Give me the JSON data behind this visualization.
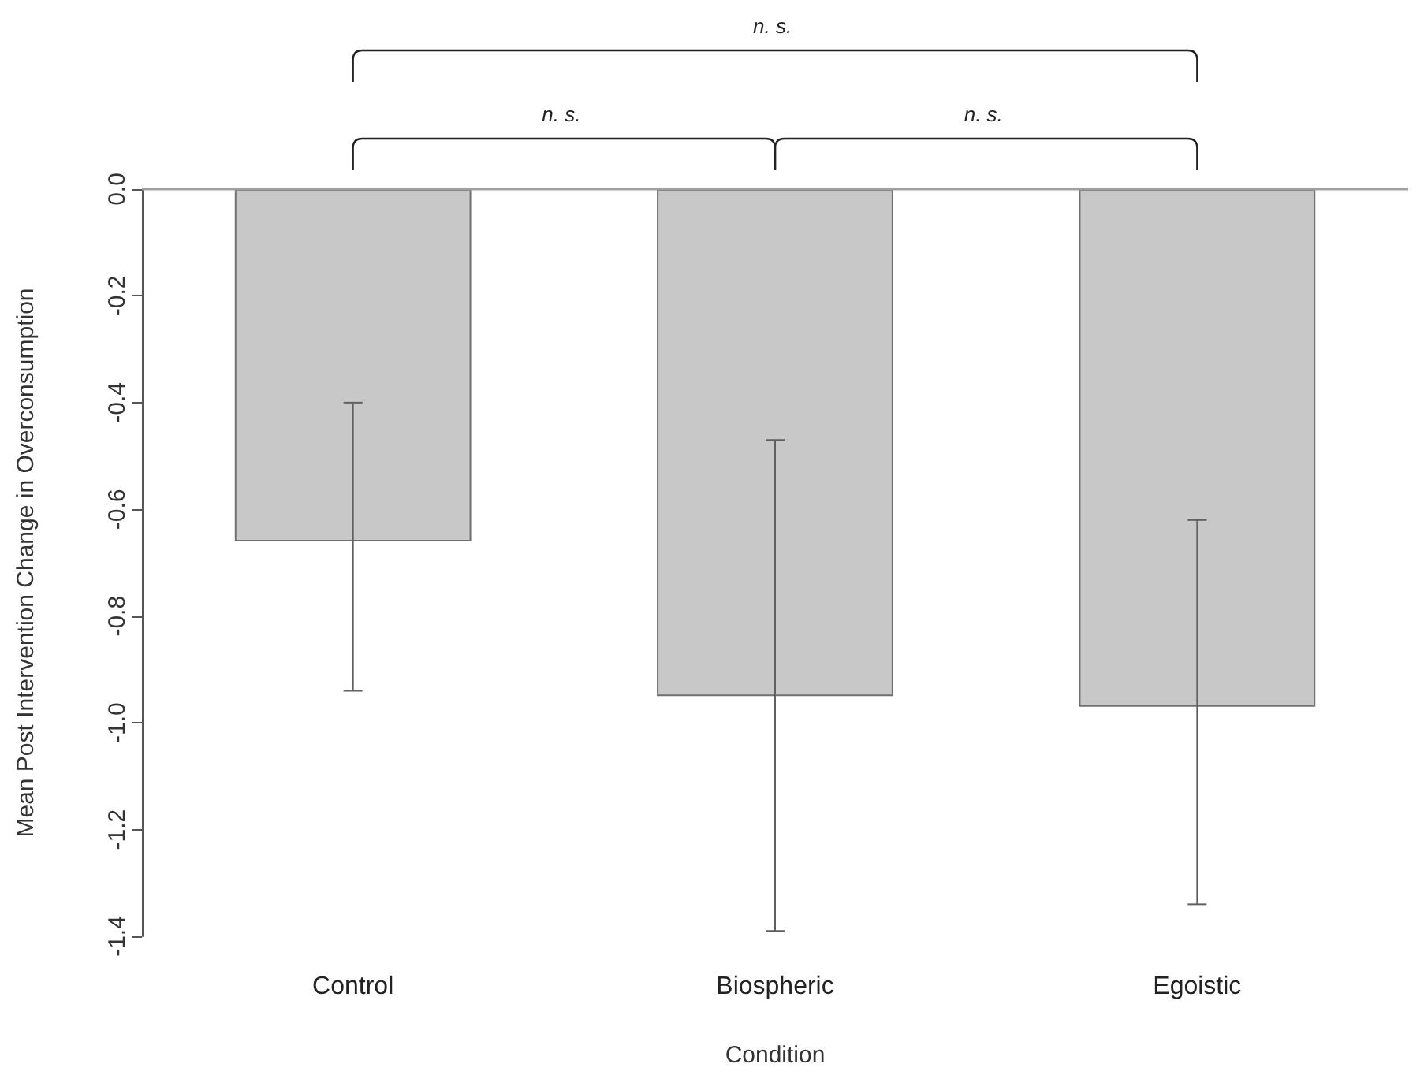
{
  "chart_data": {
    "type": "bar",
    "xlabel": "Condition",
    "ylabel": "Mean Post Intervention Change in Overconsumption",
    "categories": [
      "Control",
      "Biospheric",
      "Egoistic"
    ],
    "series": [
      {
        "color": "#c8c8c8",
        "values": [
          -0.66,
          -0.95,
          -0.97
        ],
        "errors": [
          [
            -0.94,
            -0.4
          ],
          [
            -1.39,
            -0.47
          ],
          [
            -1.34,
            -0.62
          ]
        ]
      }
    ],
    "ylim": [
      -1.4,
      0
    ],
    "yticks": [
      {
        "value": -1.4,
        "label": "-1.4"
      },
      {
        "value": -1.2,
        "label": "-1.2"
      },
      {
        "value": -1,
        "label": "-1.0"
      },
      {
        "value": -0.8,
        "label": "-0.8"
      },
      {
        "value": -0.6,
        "label": "-0.6"
      },
      {
        "value": -0.4,
        "label": "-0.4"
      },
      {
        "value": -0.2,
        "label": "-0.2"
      },
      {
        "value": 0,
        "label": "0.0"
      }
    ],
    "ref_lines": [
      {
        "axis": "y",
        "value": 0,
        "color": "#a0a0a0"
      }
    ],
    "annotations": [
      "n. s.",
      "n. s.",
      "n. s."
    ]
  }
}
